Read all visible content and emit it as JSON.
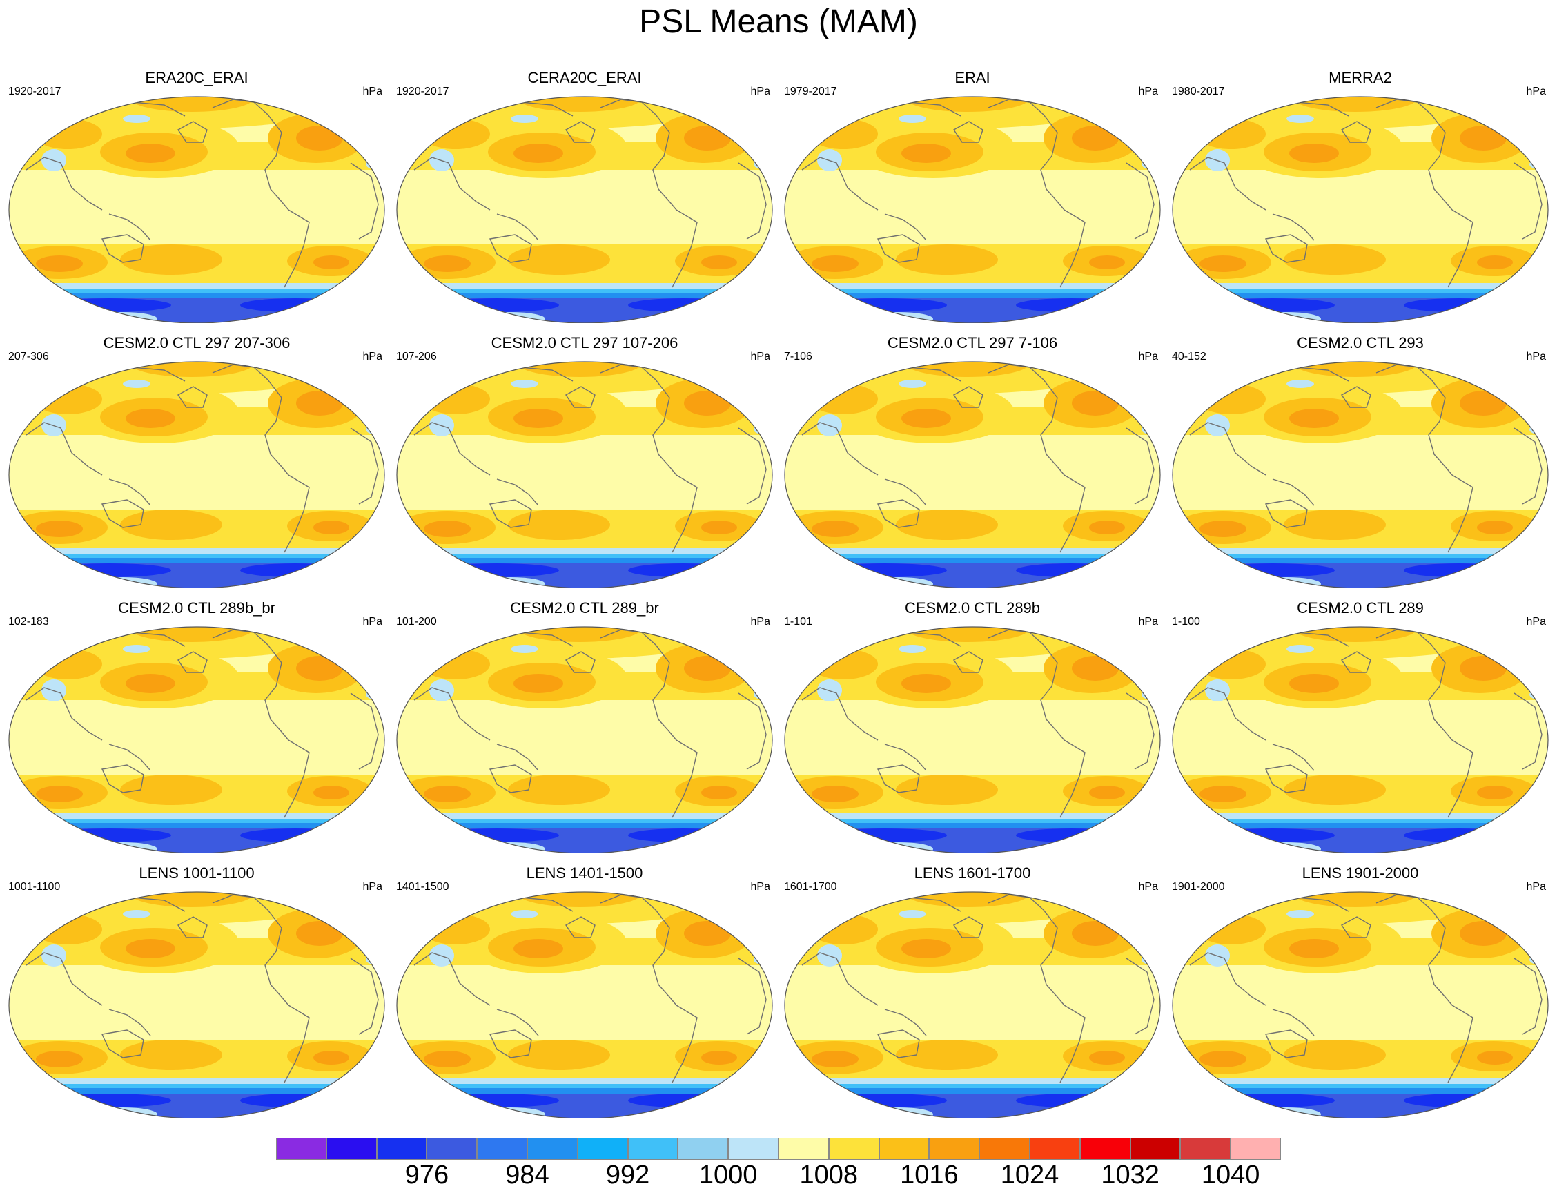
{
  "title": "PSL Means (MAM)",
  "panels": [
    {
      "title": "ERA20C_ERAI",
      "period": "1920-2017",
      "units": "hPa"
    },
    {
      "title": "CERA20C_ERAI",
      "period": "1920-2017",
      "units": "hPa"
    },
    {
      "title": "ERAI",
      "period": "1979-2017",
      "units": "hPa"
    },
    {
      "title": "MERRA2",
      "period": "1980-2017",
      "units": "hPa"
    },
    {
      "title": "CESM2.0 CTL 297 207-306",
      "period": "207-306",
      "units": "hPa"
    },
    {
      "title": "CESM2.0 CTL 297 107-206",
      "period": "107-206",
      "units": "hPa"
    },
    {
      "title": "CESM2.0 CTL 297 7-106",
      "period": "7-106",
      "units": "hPa"
    },
    {
      "title": "CESM2.0 CTL 293",
      "period": "40-152",
      "units": "hPa"
    },
    {
      "title": "CESM2.0 CTL 289b_br",
      "period": "102-183",
      "units": "hPa"
    },
    {
      "title": "CESM2.0 CTL 289_br",
      "period": "101-200",
      "units": "hPa"
    },
    {
      "title": "CESM2.0 CTL 289b",
      "period": "1-101",
      "units": "hPa"
    },
    {
      "title": "CESM2.0 CTL 289",
      "period": "1-100",
      "units": "hPa"
    },
    {
      "title": "LENS 1001-1100",
      "period": "1001-1100",
      "units": "hPa"
    },
    {
      "title": "LENS 1401-1500",
      "period": "1401-1500",
      "units": "hPa"
    },
    {
      "title": "LENS 1601-1700",
      "period": "1601-1700",
      "units": "hPa"
    },
    {
      "title": "LENS 1901-2000",
      "period": "1901-2000",
      "units": "hPa"
    }
  ],
  "colorbar": {
    "colors": [
      "#8a2be2",
      "#2a0ef0",
      "#1630f0",
      "#3c5ae0",
      "#2e78f0",
      "#2290f0",
      "#10b0f8",
      "#40c0f8",
      "#90d0f0",
      "#bde4f8",
      "#fefca8",
      "#fde23a",
      "#fbc018",
      "#f9a010",
      "#f87808",
      "#f84010",
      "#f80008",
      "#cc0000",
      "#d83a3a",
      "#ffb0b0"
    ],
    "tick_labels": [
      "976",
      "984",
      "992",
      "1000",
      "1008",
      "1016",
      "1024",
      "1032",
      "1040"
    ]
  },
  "map_colors": {
    "background": "#fefca8",
    "high1": "#fde23a",
    "high2": "#fbc018",
    "high3": "#f9a010",
    "low1": "#bde4f8",
    "low2": "#40c0f8",
    "low3": "#2290f0",
    "low4": "#3c5ae0",
    "low5": "#1630f0",
    "coast": "#707070"
  }
}
